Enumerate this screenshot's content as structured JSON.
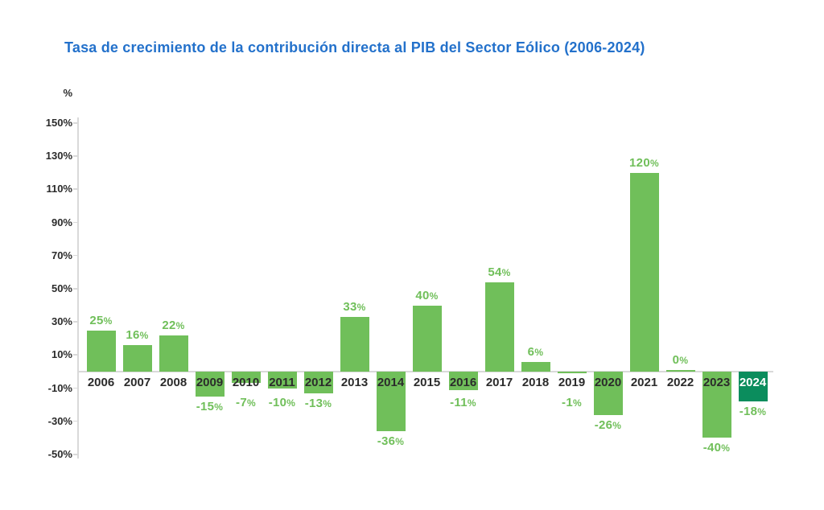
{
  "chart_data": {
    "type": "bar",
    "title": "Tasa de crecimiento de la contribución directa al PIB del Sector Eólico (2006-2024)",
    "axis_unit": "%",
    "xlabel": "",
    "ylabel": "%",
    "categories": [
      "2006",
      "2007",
      "2008",
      "2009",
      "2010",
      "2011",
      "2012",
      "2013",
      "2014",
      "2015",
      "2016",
      "2017",
      "2018",
      "2019",
      "2020",
      "2021",
      "2022",
      "2023",
      "2024"
    ],
    "values": [
      25,
      16,
      22,
      -15,
      -7,
      -10,
      -13,
      33,
      -36,
      40,
      -11,
      54,
      6,
      -1,
      -26,
      120,
      0,
      -40,
      -18
    ],
    "value_labels": [
      "25%",
      "16%",
      "22%",
      "-15%",
      "-7%",
      "-10%",
      "-13%",
      "33%",
      "-36%",
      "40%",
      "-11%",
      "54%",
      "6%",
      "-1%",
      "-26%",
      "120%",
      "0%",
      "-40%",
      "-18%"
    ],
    "ylim": [
      -50,
      150
    ],
    "ytick_step": 20,
    "ytick_values": [
      150,
      130,
      110,
      90,
      70,
      50,
      30,
      10,
      -10,
      -30,
      -50
    ],
    "ytick_labels": [
      "150%",
      "130%",
      "110%",
      "90%",
      "70%",
      "50%",
      "30%",
      "10%",
      "-10%",
      "-30%",
      "-50%"
    ],
    "grid": "off",
    "legend": "none",
    "highlight_category": "2024",
    "colors": {
      "bar": "#70bf5a",
      "highlight_bar": "#0b8d5d",
      "value_label": "#70bf5a",
      "title": "#2371cb",
      "category_label": "#2b2b2b",
      "highlight_category_label": "#ffffff",
      "tick_label": "#2b2b2b",
      "axis_line": "#d9d9d9"
    }
  }
}
